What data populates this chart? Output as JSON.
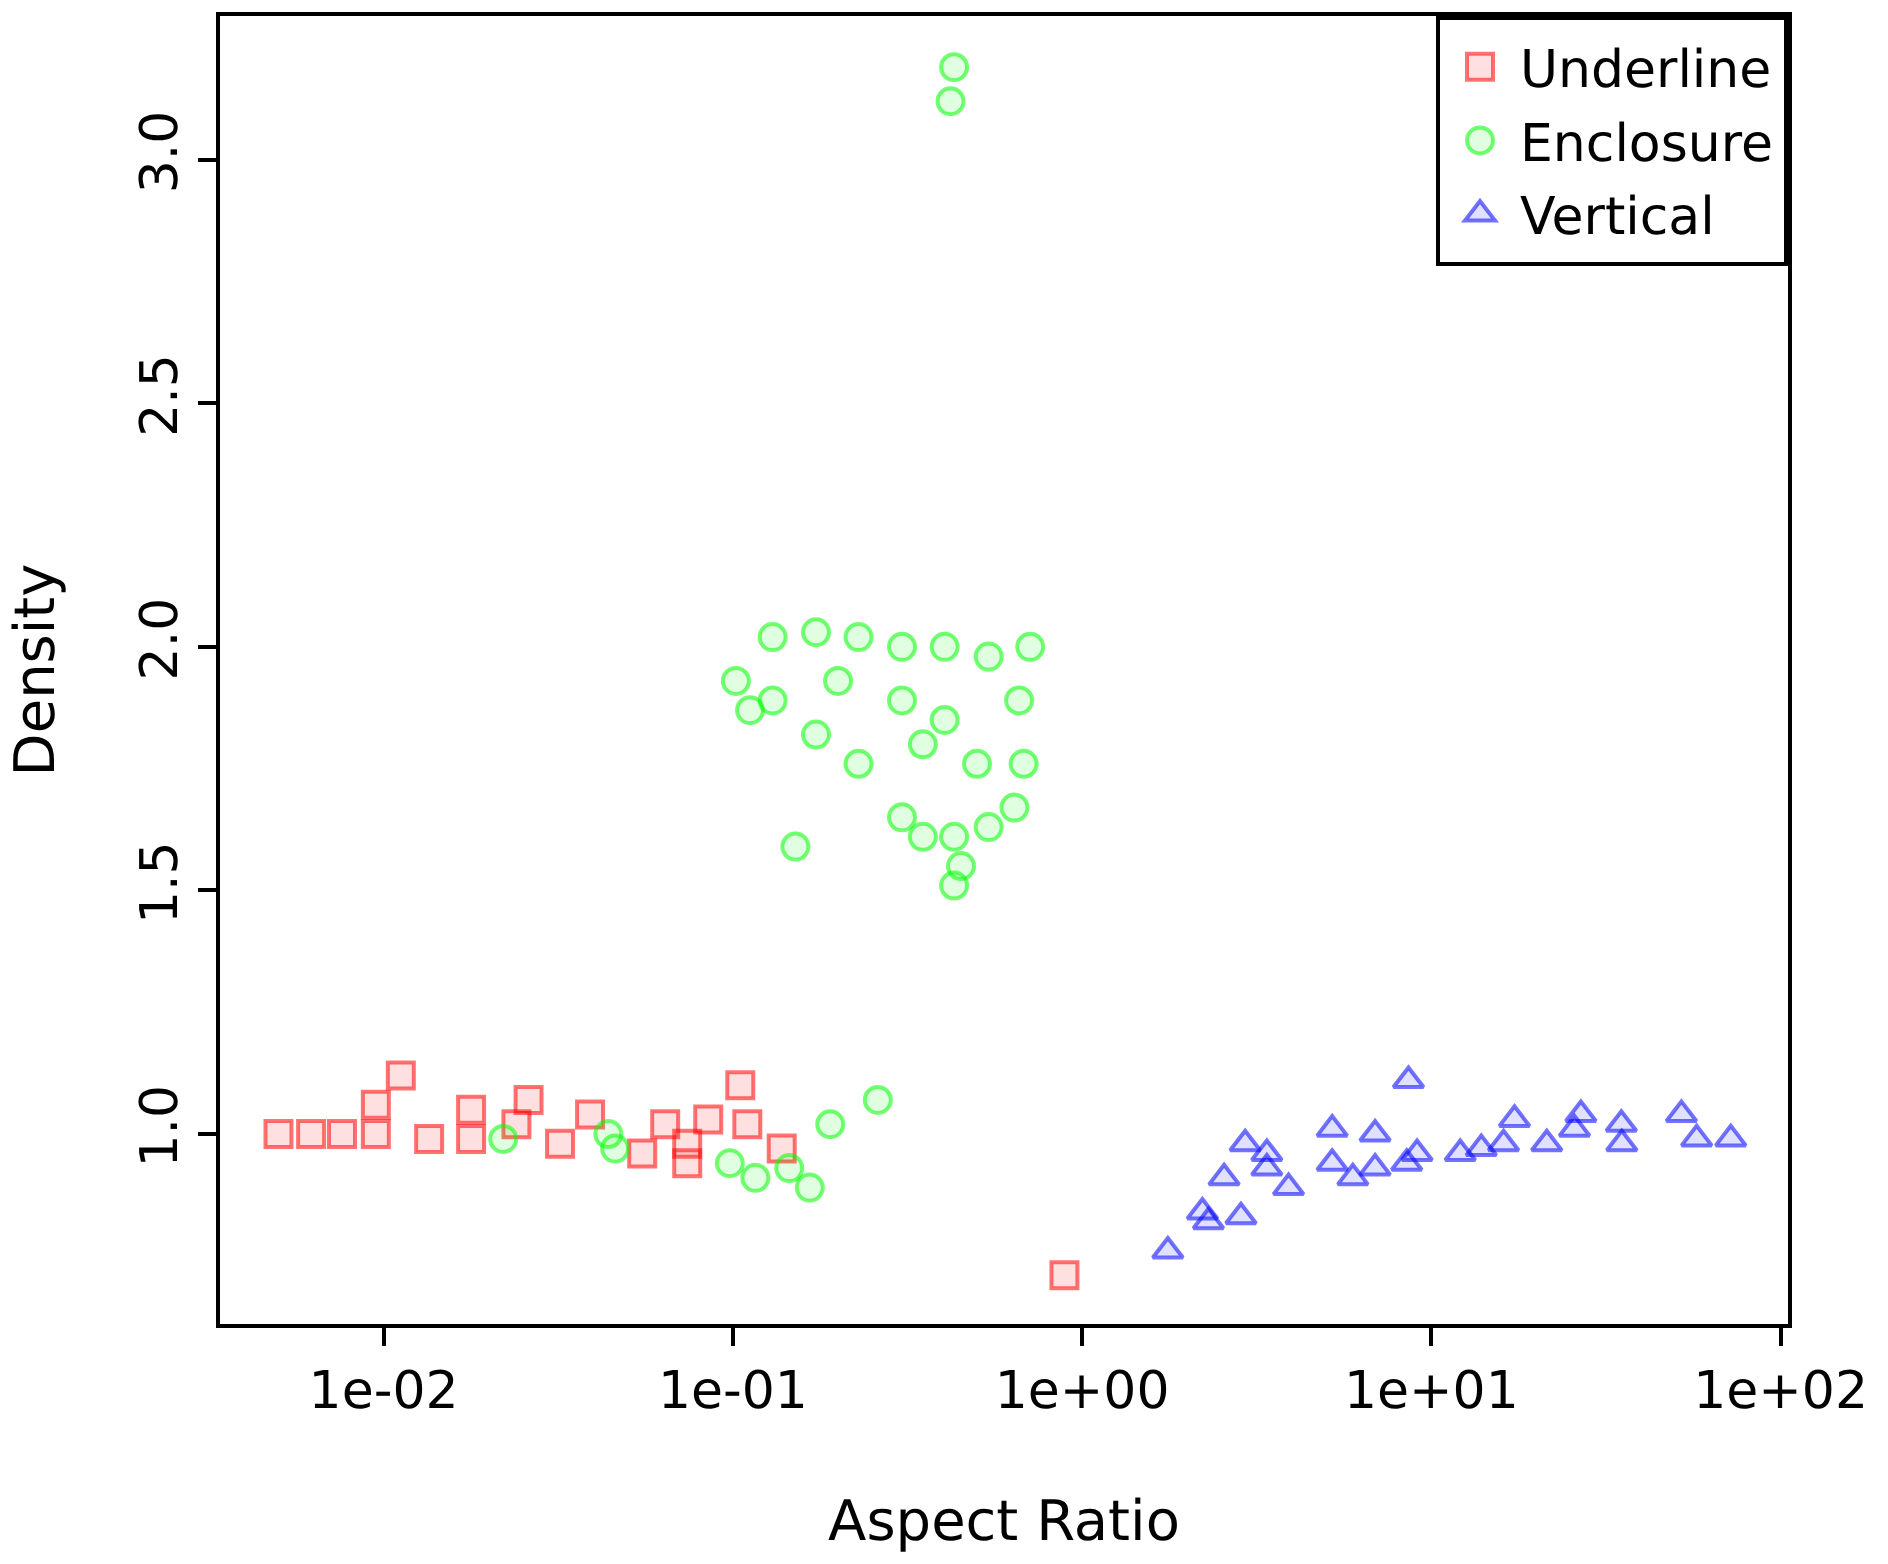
{
  "chart_data": {
    "type": "scatter",
    "xlabel": "Aspect Ratio",
    "ylabel": "Density",
    "log": "x",
    "grid": false,
    "legend": "top right",
    "xlim": [
      0.0034,
      105
    ],
    "ylim": [
      0.61,
      3.295
    ],
    "xticks": [
      {
        "value": 0.01,
        "label": "1e-02"
      },
      {
        "value": 0.1,
        "label": "1e-01"
      },
      {
        "value": 1,
        "label": "1e+00"
      },
      {
        "value": 10,
        "label": "1e+01"
      },
      {
        "value": 100,
        "label": "1e+02"
      }
    ],
    "yticks": [
      {
        "value": 1,
        "label": "1.0"
      },
      {
        "value": 1.5,
        "label": "1.5"
      },
      {
        "value": 2,
        "label": "2.0"
      },
      {
        "value": 2.5,
        "label": "2.5"
      },
      {
        "value": 3,
        "label": "3.0"
      }
    ],
    "series": [
      {
        "name": "Underline",
        "color": "#ff0000",
        "marker": "square",
        "x": [
          0.005,
          0.0062,
          0.0076,
          0.0095,
          0.0112,
          0.0095,
          0.0135,
          0.0178,
          0.032,
          0.055,
          0.074,
          0.0178,
          0.026,
          0.039,
          0.064,
          0.085,
          0.105,
          0.11,
          0.138,
          0.024,
          0.074,
          0.89
        ],
        "values": [
          1.0,
          1.0,
          1.0,
          1.0,
          1.12,
          1.06,
          0.99,
          0.99,
          0.98,
          0.96,
          0.94,
          1.05,
          1.07,
          1.04,
          1.02,
          1.03,
          1.1,
          1.02,
          0.97,
          1.02,
          0.98,
          0.71
        ]
      },
      {
        "name": "Enclosure",
        "color": "#00ff00",
        "marker": "circle",
        "x": [
          0.102,
          0.112,
          0.13,
          0.173,
          0.229,
          0.305,
          0.404,
          0.54,
          0.71,
          0.66,
          0.68,
          0.64,
          0.54,
          0.43,
          0.35,
          0.305,
          0.229,
          0.173,
          0.13,
          0.2,
          0.305,
          0.404,
          0.5,
          0.35,
          0.151,
          0.43,
          0.45,
          0.43,
          0.42,
          0.022,
          0.044,
          0.046,
          0.098,
          0.116,
          0.145,
          0.166,
          0.19,
          0.26
        ],
        "values": [
          1.93,
          1.87,
          2.02,
          2.03,
          2.02,
          2.0,
          2.0,
          1.98,
          2.0,
          1.89,
          1.76,
          1.67,
          1.63,
          1.61,
          1.61,
          1.65,
          1.76,
          1.82,
          1.89,
          1.93,
          1.89,
          1.85,
          1.76,
          1.8,
          1.59,
          1.51,
          1.55,
          3.19,
          3.12,
          0.99,
          1.0,
          0.97,
          0.94,
          0.91,
          0.93,
          0.89,
          1.02,
          1.07
        ]
      },
      {
        "name": "Vertical",
        "color": "#0000ff",
        "marker": "triangle",
        "x": [
          1.76,
          2.21,
          2.3,
          2.85,
          2.55,
          2.93,
          3.38,
          3.9,
          5.96,
          8.5,
          8.6,
          6.9,
          5.2,
          12.1,
          16.1,
          17.3,
          25.7,
          26.8,
          35.1,
          35,
          52,
          57.5,
          72,
          21.4,
          3.38,
          5.2,
          9.1,
          13.9,
          6.9
        ],
        "values": [
          0.76,
          0.84,
          0.82,
          0.83,
          0.91,
          0.98,
          0.93,
          0.89,
          0.91,
          0.94,
          1.11,
          1.0,
          1.01,
          0.96,
          0.98,
          1.03,
          1.01,
          1.04,
          0.98,
          1.02,
          1.04,
          0.99,
          0.99,
          0.98,
          0.96,
          0.94,
          0.96,
          0.97,
          0.93
        ]
      }
    ]
  }
}
